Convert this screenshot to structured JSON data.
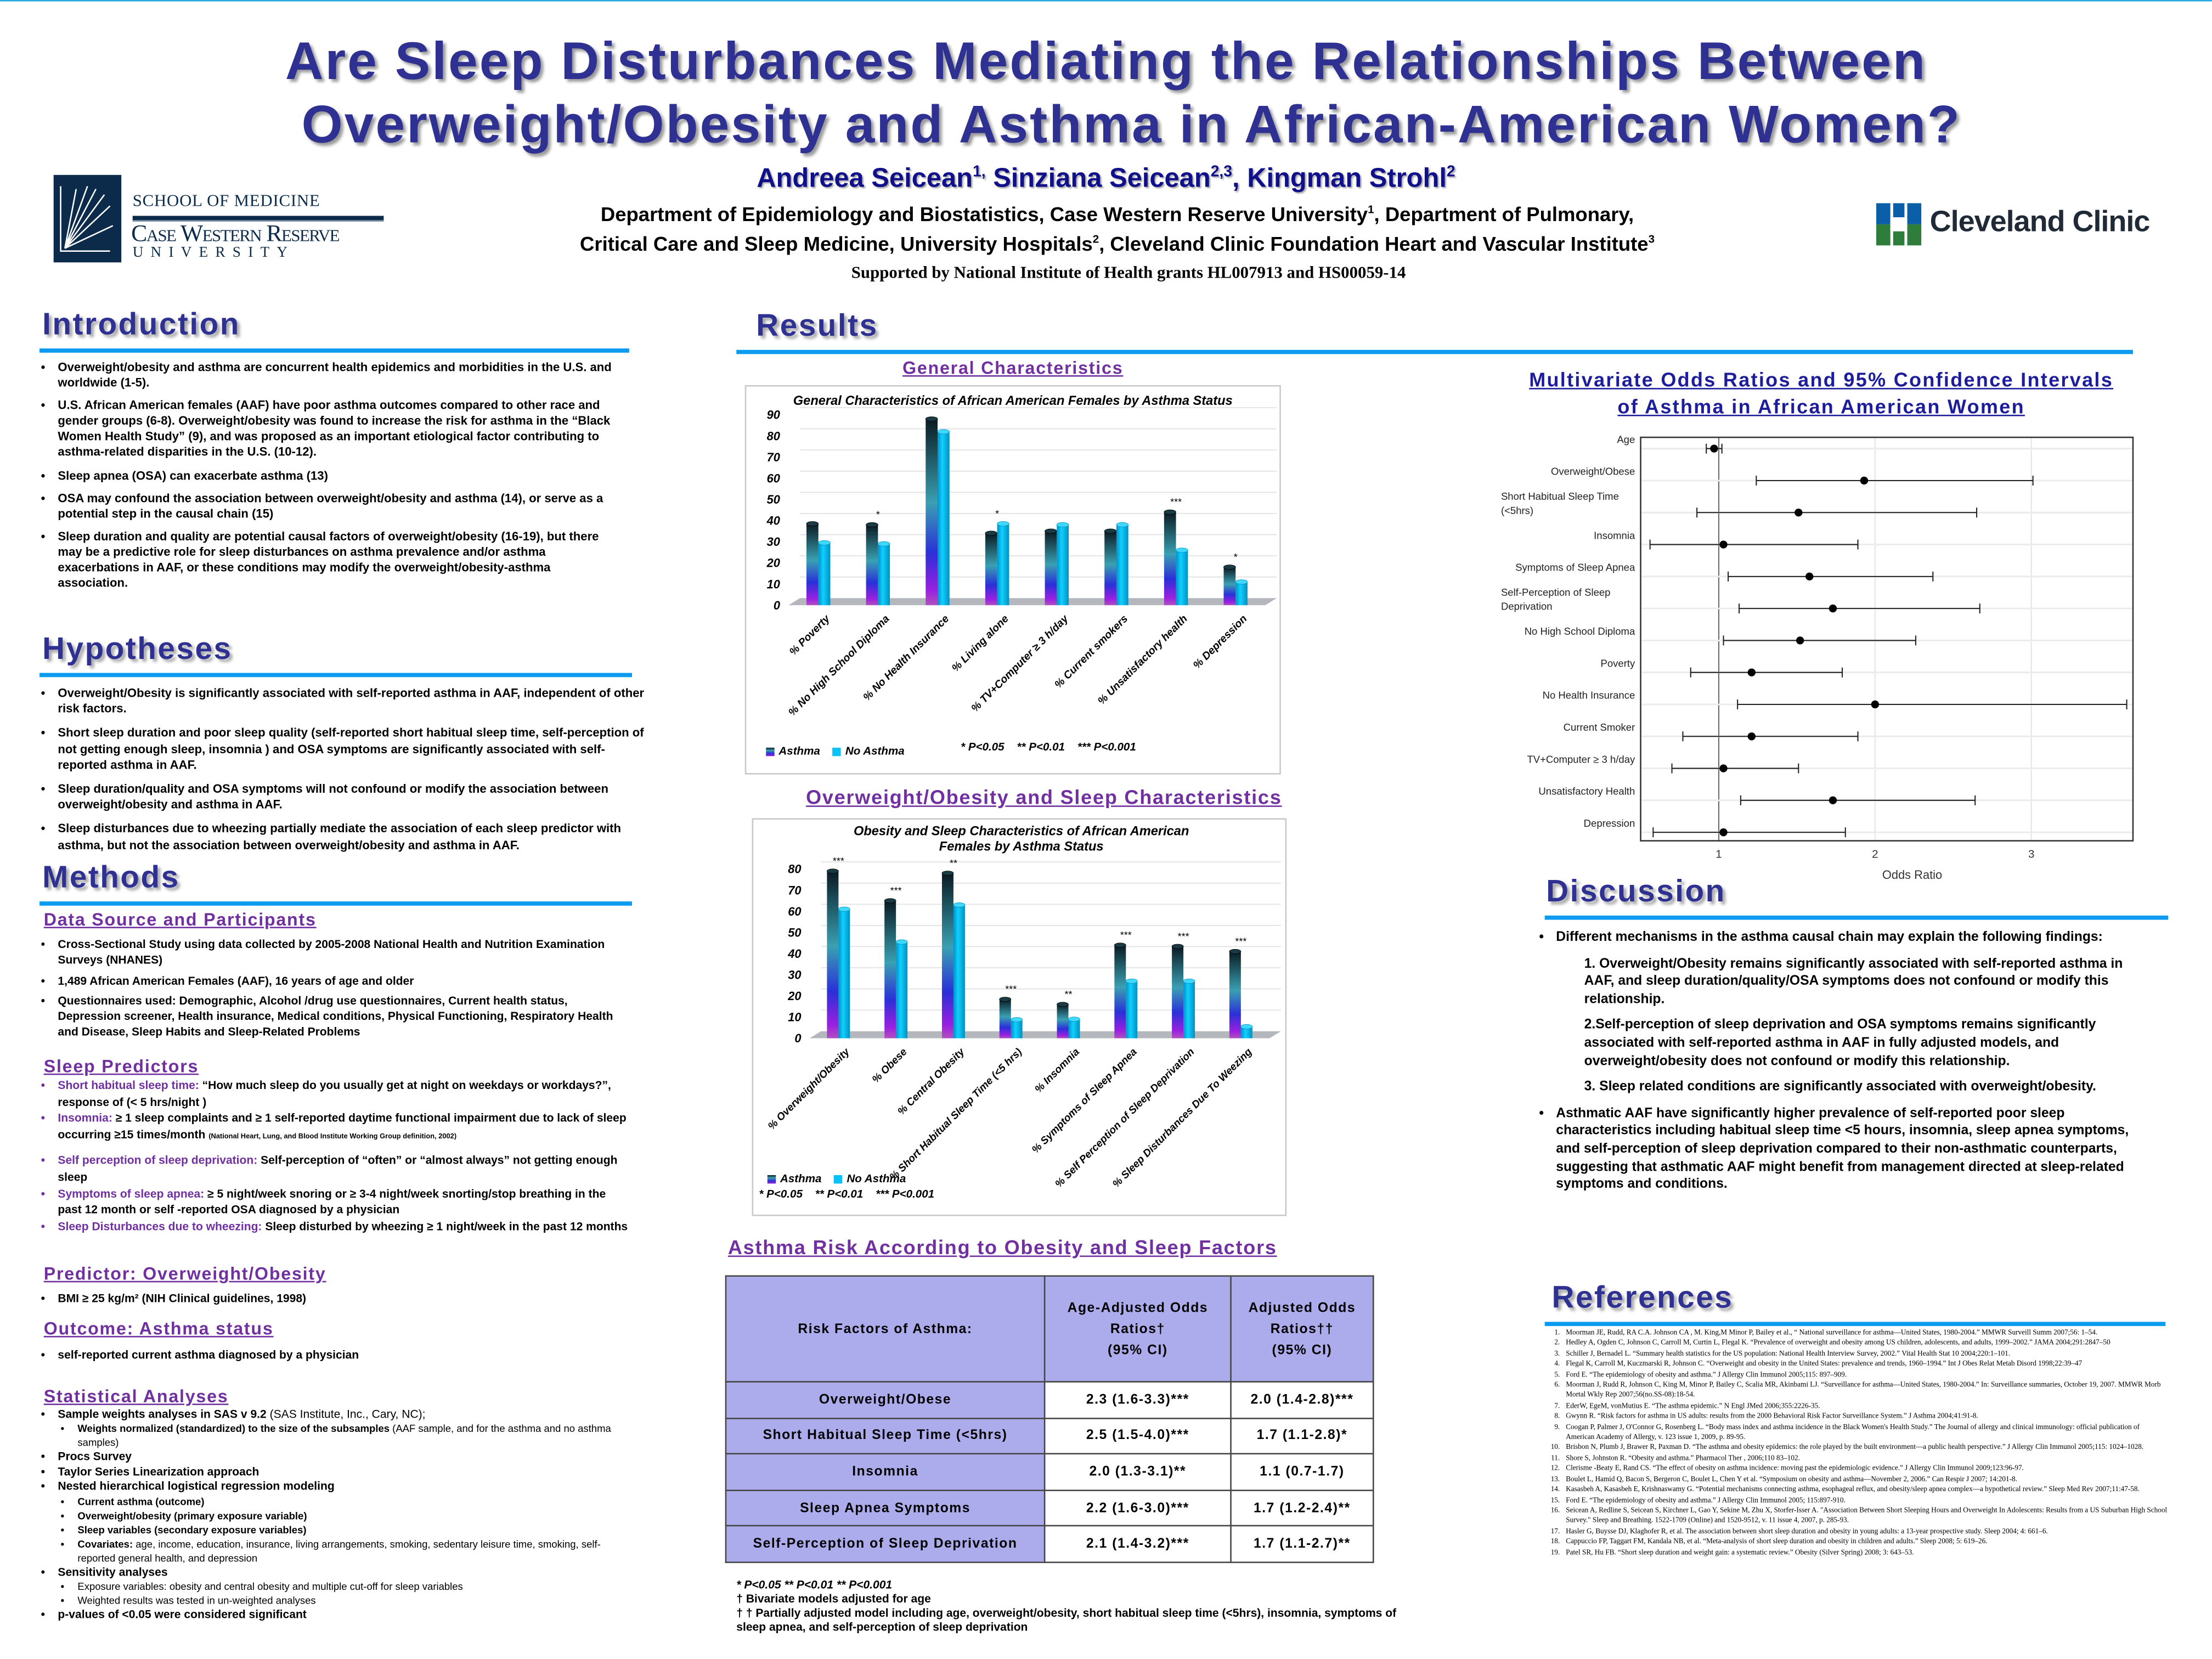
{
  "header": {
    "title_line1": "Are Sleep Disturbances Mediating the Relationships Between",
    "title_line2": "Overweight/Obesity and Asthma in African-American Women?",
    "authors": [
      {
        "name": "Andreea Seicean",
        "sup": "1,",
        "sep": " "
      },
      {
        "name": "Sinziana Seicean",
        "sup": "2,3",
        "sep": ", "
      },
      {
        "name": "Kingman Strohl",
        "sup": "2",
        "sep": ""
      }
    ],
    "affiliation_line1": {
      "a": "Department of Epidemiology and Biostatistics, Case Western Reserve University",
      "sup": "1",
      "b": ", Department of Pulmonary,"
    },
    "affiliation_line2": {
      "a": "Critical Care and Sleep Medicine, University Hospitals",
      "sup1": "2",
      "b": ", Cleveland Clinic Foundation Heart and Vascular Institute",
      "sup2": "3"
    },
    "funding": "Supported by National Institute of Health grants HL007913 and HS00059-14",
    "logo_left": {
      "line1": "SCHOOL OF MEDICINE",
      "line2": "Case Western Reserve",
      "line3": "UNIVERSITY"
    },
    "logo_right": {
      "text": "Cleveland Clinic",
      "colors": {
        "blue": "#0a5fa8",
        "green": "#2e7d3a"
      }
    }
  },
  "introduction": {
    "heading": "Introduction",
    "bullets": [
      "Overweight/obesity and asthma are concurrent health epidemics and morbidities in the U.S. and worldwide (1-5).",
      "U.S. African American females (AAF) have poor asthma outcomes compared to other race and gender groups (6-8). Overweight/obesity was found to increase the risk for asthma in the “Black Women Health Study” (9), and was proposed as an important etiological factor contributing to asthma-related disparities in the U.S. (10-12).",
      "Sleep apnea (OSA) can exacerbate asthma (13)",
      "OSA may confound the association between overweight/obesity and asthma (14), or serve as a potential step in the causal chain (15)",
      "Sleep duration and quality are potential causal factors of overweight/obesity (16-19), but there may be a predictive role for sleep disturbances on asthma prevalence  and/or asthma exacerbations in AAF, or these conditions may modify the overweight/obesity-asthma association."
    ]
  },
  "hypotheses": {
    "heading": "Hypotheses",
    "bullets": [
      "Overweight/Obesity is significantly associated with self-reported asthma in AAF, independent of other risk factors.",
      "Short sleep duration and poor sleep quality (self-reported short habitual sleep time, self-perception of not getting enough sleep, insomnia ) and OSA symptoms are significantly associated with self-reported asthma in AAF.",
      "Sleep duration/quality and OSA symptoms will not confound or modify the  association between overweight/obesity and asthma in AAF.",
      "Sleep disturbances due to wheezing partially mediate the association of each sleep predictor with asthma, but not the association between overweight/obesity and asthma in AAF."
    ]
  },
  "methods": {
    "heading": "Methods",
    "data_source": {
      "heading": "Data Source and Participants",
      "bullets": [
        "Cross-Sectional Study using data collected by 2005-2008 National Health and Nutrition Examination Surveys (NHANES)",
        "1,489 African American Females (AAF), 16 years of age and older",
        "Questionnaires used: Demographic, Alcohol /drug use questionnaires, Current health status, Depression screener, Health insurance, Medical conditions, Physical Functioning, Respiratory Health and Disease, Sleep Habits and Sleep-Related Problems"
      ]
    },
    "sleep_predictors": {
      "heading": "Sleep Predictors",
      "items": [
        {
          "label": "Short habitual sleep time:",
          "text": " “How much sleep do you usually get at night on weekdays or workdays?”, response of (< 5 hrs/night )",
          "note": ""
        },
        {
          "label": "Insomnia:",
          "text": " ≥ 1 sleep complaints and ≥ 1 self-reported daytime functional impairment due to lack of sleep occurring  ≥15 times/month ",
          "note": "(National Heart, Lung, and Blood Institute Working Group definition, 2002)"
        },
        {
          "label": "Self perception of sleep deprivation:",
          "text": " Self-perception of “often” or “almost always” not getting enough sleep",
          "note": ""
        },
        {
          "label": "Symptoms of sleep apnea:",
          "text": " ≥ 5 night/week snoring  or  ≥ 3-4 night/week snorting/stop breathing in the past 12 month or self -reported OSA diagnosed by a physician",
          "note": ""
        },
        {
          "label": "Sleep Disturbances due to wheezing:",
          "text": " Sleep disturbed by wheezing ≥ 1 night/week in the past 12 months",
          "note": ""
        }
      ]
    },
    "predictor": {
      "heading": "Predictor: Overweight/Obesity",
      "bullets": [
        "BMI ≥ 25 kg/m² (NIH Clinical guidelines, 1998)"
      ]
    },
    "outcome": {
      "heading": "Outcome: Asthma status",
      "bullets": [
        "self-reported current asthma diagnosed by a physician"
      ]
    },
    "statistical": {
      "heading": "Statistical Analyses",
      "items": [
        {
          "level": 1,
          "bold": "Sample weights analyses in SAS v 9.2",
          "normal": " (SAS Institute, Inc., Cary, NC);"
        },
        {
          "level": 2,
          "bold": "Weights normalized (standardized) to the size of the subsamples",
          "normal": " (AAF sample, and for the asthma and no asthma samples)"
        },
        {
          "level": 1,
          "bold": "Procs Survey",
          "normal": ""
        },
        {
          "level": 1,
          "bold": "Taylor Series Linearization approach",
          "normal": ""
        },
        {
          "level": 1,
          "bold": "Nested hierarchical logistical regression modeling",
          "normal": ""
        },
        {
          "level": 2,
          "bold": "Current asthma (outcome)",
          "normal": ""
        },
        {
          "level": 2,
          "bold": "Overweight/obesity (primary exposure variable)",
          "normal": ""
        },
        {
          "level": 2,
          "bold": "Sleep variables (secondary exposure variables)",
          "normal": ""
        },
        {
          "level": 2,
          "bold": "Covariates:",
          "normal": "  age, income, education, insurance, living arrangements, smoking, sedentary leisure time, smoking, self-reported general health,  and depression"
        },
        {
          "level": 1,
          "bold": "Sensitivity analyses",
          "normal": ""
        },
        {
          "level": 2,
          "bold": "",
          "normal": "Exposure variables: obesity and central obesity and multiple cut-off for sleep variables"
        },
        {
          "level": 2,
          "bold": "",
          "normal": "Weighted results was tested in un-weighted analyses"
        },
        {
          "level": 1,
          "bold": "p-values of <0.05 were considered significant",
          "normal": ""
        }
      ]
    }
  },
  "results": {
    "heading": "Results",
    "general_heading": "General Characteristics",
    "obesity_sleep_heading": "Overweight/Obesity and Sleep Characteristics",
    "table_heading": "Asthma Risk According to Obesity and Sleep Factors",
    "table": {
      "headers": [
        "Risk Factors of Asthma:",
        "Age-Adjusted Odds Ratios†",
        "(95% CI)",
        "Adjusted Odds Ratios††",
        "(95% CI)"
      ],
      "rows": [
        [
          "Overweight/Obese",
          "2.3 (1.6-3.3)***",
          "2.0 (1.4-2.8)***"
        ],
        [
          "Short Habitual Sleep Time (<5hrs)",
          "2.5 (1.5-4.0)***",
          "1.7 (1.1-2.8)*"
        ],
        [
          "Insomnia",
          "2.0 (1.3-3.1)**",
          "1.1 (0.7-1.7)"
        ],
        [
          "Sleep Apnea Symptoms",
          "2.2 (1.6-3.0)***",
          "1.7 (1.2-2.4)**"
        ],
        [
          "Self-Perception of Sleep Deprivation",
          "2.1 (1.4-3.2)***",
          "1.7 (1.1-2.7)**"
        ]
      ],
      "footnotes": [
        "* P<0.05        ** P<0.01        ** P<0.001",
        "† Bivariate models adjusted for age",
        "† † Partially adjusted model including age, overweight/obesity, short habitual sleep time (<5hrs), insomnia, symptoms of  sleep apnea, and self-perception of sleep deprivation"
      ]
    },
    "forest_heading_line1": "Multivariate Odds Ratios and 95% Confidence Intervals",
    "forest_heading_line2": "of Asthma in African American Women"
  },
  "discussion": {
    "heading": "Discussion",
    "bullet1": "Different mechanisms in the asthma causal chain may explain the following findings:",
    "findings": [
      " 1. Overweight/Obesity remains significantly associated with self-reported asthma in AAF, and sleep duration/quality/OSA symptoms does not confound or modify this relationship.",
      "2.Self-perception of sleep deprivation and OSA symptoms remains significantly associated with self-reported asthma in AAF in fully adjusted models, and overweight/obesity does not confound or modify this relationship.",
      "3. Sleep related conditions are significantly associated with overweight/obesity."
    ],
    "bullet2": "Asthmatic AAF have significantly higher prevalence of self-reported poor sleep characteristics including habitual sleep time <5 hours, insomnia, sleep apnea symptoms, and self-perception of sleep deprivation compared to their non-asthmatic counterparts, suggesting that  asthmatic AAF might benefit from management directed at sleep-related symptoms and conditions."
  },
  "references": {
    "heading": "References",
    "items": [
      "Moorman JE, Rudd, RA C.A. Johnson CA , M. King,M Minor P, Bailey et al., “ National surveillance for asthma—United States, 1980-2004.” MMWR Surveill Summ 2007;56: 1–54.",
      "Hedley A, Ogden C, Johnson C, Carroll M, Curtin L, Flegal K. “Prevalence of overweight and obesity among US children, adolescents, and adults, 1999–2002.” JAMA 2004;291:2847–50",
      "Schiller J, Bernadel L. “Summary health statistics for the US population: National Health Interview Survey, 2002.” Vital Health Stat 10 2004;220:1–101.",
      "Flegal K, Carroll M, Kuczmarski R, Johnson C. “Overweight and obesity in the United States: prevalence and trends, 1960–1994.” Int J Obes Relat Metab Disord 1998;22:39–47",
      "Ford E. “The epidemiology of obesity and asthma.” J Allergy Clin Immunol 2005;115: 897–909.",
      "Moorman J, Rudd R, Johnson C, King M, Minor P, Bailey C, Scalia MR, Akinbami LJ. “Surveillance for asthma—United States, 1980-2004.”  In: Surveillance summaries, October 19, 2007. MMWR Morb Mortal Wkly Rep 2007;56(no.SS-08):18-54.",
      "EderW, EgeM, vonMutius E. “The asthma epidemic.”  N Engl JMed 2006;355:2226-35.",
      " Gwynn R. “Risk factors for asthma in US adults: results from the 2000 Behavioral Risk Factor Surveillance System.” J Asthma 2004;41:91-8.",
      "Coogan P, Palmer J, O'Connor G, Rosenberg L. “Body mass index and asthma incidence in the Black Women's Health Study.” The Journal of allergy and clinical immunology: official publication of American Academy of Allergy, v. 123 issue 1, 2009, p. 89-95.",
      "Brisbon N, Plumb J, Brawer R, Paxman D. “The asthma and obesity epidemics: the role played by the built environment—a public health perspective.” J Allergy Clin Immunol 2005;115: 1024–1028.",
      "Shore S, Johnston R. “Obesity and asthma.” Pharmacol Ther , 2006;110 83–102.",
      "Clerisme -Beaty E, Rand CS. “The effect of obesity on asthma incidence: moving past the epidemiologic evidence.” J Allergy Clin Immunol 2009;123:96-97.",
      "Boulet L, Hamid Q, Bacon S, Bergeron C, Boulet L, Chen Y et al. “Symposium on obesity and asthma—November 2, 2006.” Can Respir J 2007; 14:201-8.",
      "Kasasbeh A, Kasasbeh E, Krishnaswamy G. “Potential mechanisms connecting asthma, esophageal reflux, and obesity/sleep apnea complex—a hypothetical review.” Sleep Med Rev 2007;11:47-58.",
      "Ford E. “The epidemiology of obesity and asthma.” J Allergy Clin Immunol 2005; 115:897-910.",
      "Seicean A, Redline S, Seicean S, Kirchner L, Gao Y, Sekine M, Zhu X, Storfer-Isser A. \"Association Between Short Sleeping Hours and Overweight In Adolescents: Results from a US Suburban High School Survey.\" Sleep and Breathing. 1522-1709 (Online) and 1520-9512, v. 11 issue 4, 2007, p. 285-93.",
      "Hasler G, Buysse DJ, Klaghofer R, et al. The association between short sleep duration and obesity in young adults: a 13-year prospective study. Sleep 2004; 4: 661–6.",
      "Cappuccio FP, Taggart FM, Kandala NB, et al. “Meta-analysis of short sleep duration and obesity in children and adults.” Sleep 2008; 5: 619–26.",
      "Patel SR, Hu FB. “Short sleep duration and weight gain: a systematic review.” Obesity (Silver Spring) 2008; 3: 643–53."
    ]
  },
  "chart_data": [
    {
      "type": "bar",
      "title": "General Characteristics of African American Females by Asthma Status",
      "categories": [
        "% Poverty",
        "% No High School Diploma",
        "% No Health Insurance",
        "% Living alone",
        "% TV+Computer ≥ 3 h/day",
        "% Current smokers",
        "% Unsatisfactory health",
        "% Depression"
      ],
      "series": [
        {
          "name": "Asthma",
          "values": [
            38.5,
            38,
            88,
            34,
            35,
            35,
            44,
            18
          ]
        },
        {
          "name": "No Asthma",
          "values": [
            29.5,
            29,
            82,
            38.5,
            38,
            38,
            26,
            11
          ]
        }
      ],
      "significance": [
        "",
        "*",
        "",
        "*",
        "",
        "",
        "***",
        "*"
      ],
      "ylim": [
        0,
        90
      ],
      "yticks": [
        0,
        10,
        20,
        30,
        40,
        50,
        60,
        70,
        80,
        90
      ],
      "xlabel": "",
      "ylabel": "",
      "legend": "bottom-left",
      "pvalue_notes": [
        "* P<0.05",
        "** P<0.01",
        "*** P<0.001"
      ],
      "colors": {
        "Asthma": "#1b2f6e",
        "No Asthma": "#0ac2f5"
      }
    },
    {
      "type": "bar",
      "title": "Obesity and Sleep Characteristics of African American Females by Asthma Status",
      "categories": [
        "% Overweight/Obesity",
        "% Obese",
        "% Central Obesity",
        "% Short Habitual Sleep Time (<5 hrs)",
        "% Insomnia",
        "% Symptoms of Sleep Apnea",
        "% Self Perception of Sleep Deprivation",
        "% Sleep Disturbances Due To Weezing"
      ],
      "series": [
        {
          "name": "Asthma",
          "values": [
            79,
            65,
            78,
            18.4,
            16,
            44,
            43.4,
            41
          ]
        },
        {
          "name": "No Asthma",
          "values": [
            61,
            45.5,
            63,
            8.8,
            9,
            27,
            27,
            5.5
          ]
        }
      ],
      "significance": [
        "***",
        "***",
        "**",
        "***",
        "**",
        "***",
        "***",
        "***"
      ],
      "ylim": [
        0,
        80
      ],
      "yticks": [
        0,
        10,
        20,
        30,
        40,
        50,
        60,
        70,
        80
      ],
      "xlabel": "",
      "ylabel": "",
      "legend": "bottom-left",
      "pvalue_notes": [
        "* P<0.05",
        "** P<0.01",
        "*** P<0.001"
      ],
      "colors": {
        "Asthma": "#1b2f6e",
        "No Asthma": "#0ac2f5"
      }
    },
    {
      "type": "scatter",
      "subtype": "forest",
      "title": "Multivariate Odds Ratios and 95% Confidence Intervals of Asthma in African American Women",
      "xlabel": "Odds Ratio",
      "xlim": [
        0.5,
        3.65
      ],
      "xticks": [
        1,
        2,
        3
      ],
      "reference_line": 1,
      "rows": [
        {
          "label": [
            "Age"
          ],
          "or": 0.97,
          "lo": 0.92,
          "hi": 1.02
        },
        {
          "label": [
            "Overweight/Obese"
          ],
          "or": 1.93,
          "lo": 1.24,
          "hi": 3.01
        },
        {
          "label": [
            "Short Habitual Sleep Time",
            "(<5hrs)"
          ],
          "or": 1.51,
          "lo": 0.86,
          "hi": 2.65
        },
        {
          "label": [
            "Insomnia"
          ],
          "or": 1.03,
          "lo": 0.56,
          "hi": 1.89
        },
        {
          "label": [
            "Symptoms of Sleep Apnea"
          ],
          "or": 1.58,
          "lo": 1.06,
          "hi": 2.37
        },
        {
          "label": [
            "Self-Perception of Sleep",
            "Deprivation"
          ],
          "or": 1.73,
          "lo": 1.13,
          "hi": 2.67
        },
        {
          "label": [
            "No High School Diploma"
          ],
          "or": 1.52,
          "lo": 1.03,
          "hi": 2.26
        },
        {
          "label": [
            "Poverty"
          ],
          "or": 1.21,
          "lo": 0.82,
          "hi": 1.79
        },
        {
          "label": [
            "No Health Insurance"
          ],
          "or": 2.0,
          "lo": 1.12,
          "hi": 3.61
        },
        {
          "label": [
            "Current Smoker"
          ],
          "or": 1.21,
          "lo": 0.77,
          "hi": 1.89
        },
        {
          "label": [
            "TV+Computer ≥ 3 h/day"
          ],
          "or": 1.03,
          "lo": 0.7,
          "hi": 1.51
        },
        {
          "label": [
            "Unsatisfactory Health"
          ],
          "or": 1.73,
          "lo": 1.14,
          "hi": 2.64
        },
        {
          "label": [
            "Depression"
          ],
          "or": 1.03,
          "lo": 0.58,
          "hi": 1.81
        }
      ]
    }
  ]
}
